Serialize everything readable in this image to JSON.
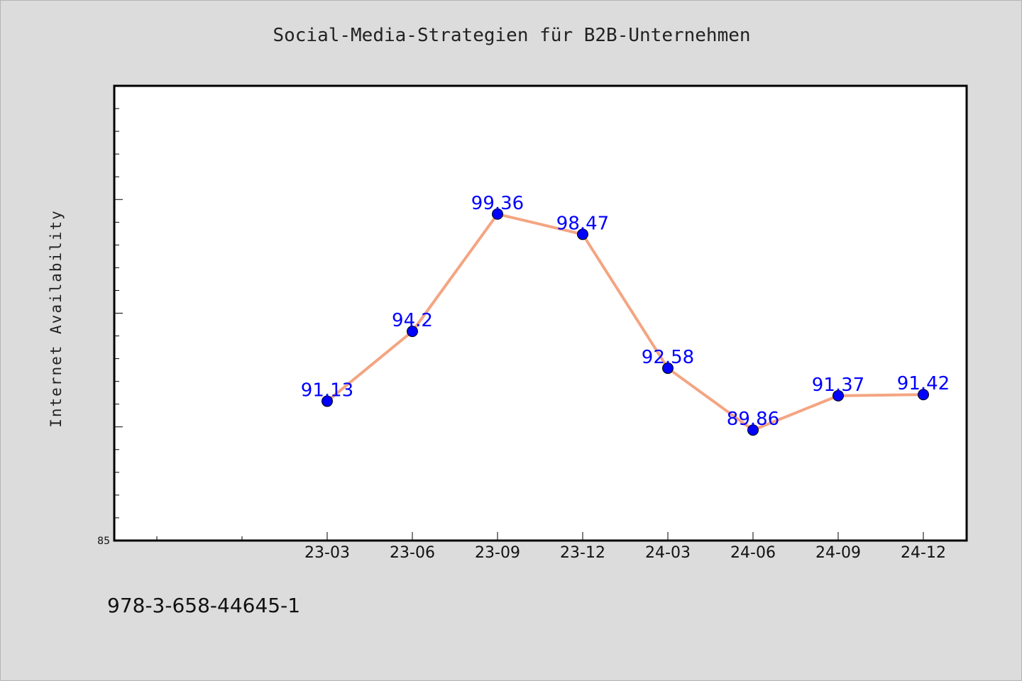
{
  "chart_data": {
    "type": "line",
    "title": "Social-Media-Strategien für B2B-Unternehmen",
    "ylabel": "Internet Availability",
    "xlabel": "",
    "x": [
      "23-03",
      "23-06",
      "23-09",
      "23-12",
      "24-03",
      "24-06",
      "24-09",
      "24-12"
    ],
    "series": [
      {
        "values": [
          91.13,
          94.2,
          99.36,
          98.47,
          92.58,
          89.86,
          91.37,
          91.42
        ],
        "line_color": "#f4a582",
        "marker_color": "#0000ff"
      }
    ],
    "ylim": [
      85,
      105
    ],
    "y_tick_labels": [
      "85"
    ],
    "data_labels": [
      "91.13",
      "94.2",
      "99.36",
      "98.47",
      "92.58",
      "89.86",
      "91.37",
      "91.42"
    ],
    "grid": false,
    "legend": "none"
  },
  "footer": {
    "isbn": "978-3-658-44645-1"
  }
}
